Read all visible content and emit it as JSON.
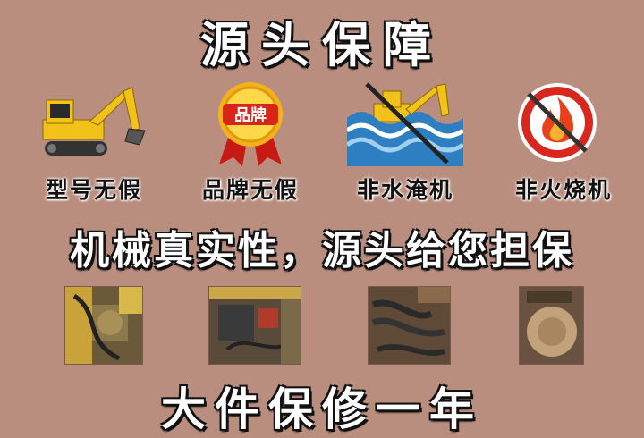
{
  "title": "源头保障",
  "badges": [
    {
      "label": "型号无假",
      "icon": "excavator-icon"
    },
    {
      "label": "品牌无假",
      "icon": "brand-medal-icon",
      "medal_text": "品牌"
    },
    {
      "label": "非水淹机",
      "icon": "no-flood-icon"
    },
    {
      "label": "非火烧机",
      "icon": "no-fire-icon"
    }
  ],
  "slogan": "机械真实性，源头给您担保",
  "photos": [
    {
      "name": "hydraulic-pump-photo"
    },
    {
      "name": "engine-bay-photo"
    },
    {
      "name": "hydraulic-hoses-photo"
    },
    {
      "name": "swing-motor-photo"
    }
  ],
  "warranty": "大件保修一年",
  "colors": {
    "background": "#b98e7e",
    "excavator_yellow": "#f2c21a",
    "medal_red": "#d9241c",
    "water_blue": "#2e7fc1",
    "prohibit_red": "#d8281e"
  }
}
